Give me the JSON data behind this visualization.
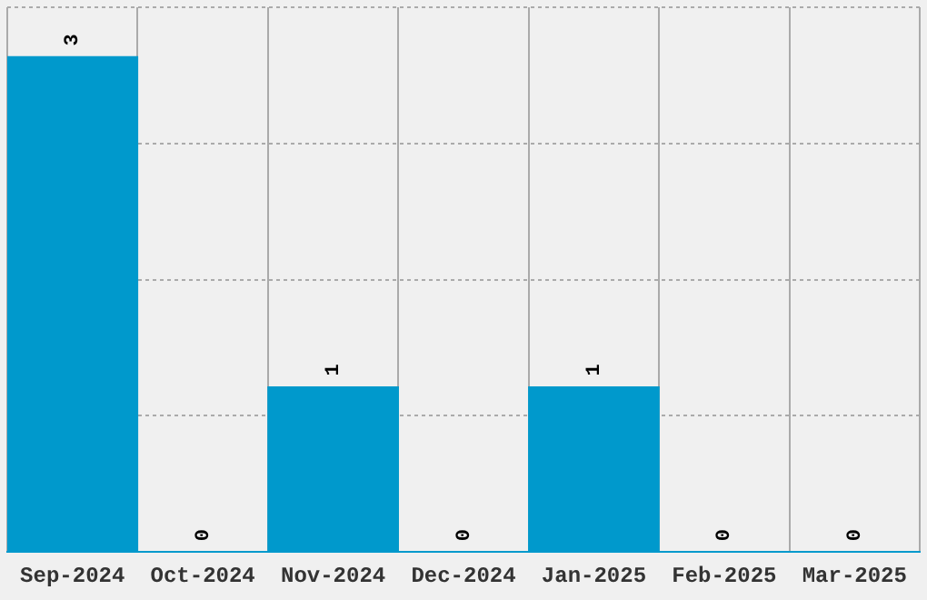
{
  "chart_data": {
    "type": "bar",
    "categories": [
      "Sep-2024",
      "Oct-2024",
      "Nov-2024",
      "Dec-2024",
      "Jan-2025",
      "Feb-2025",
      "Mar-2025"
    ],
    "values": [
      3,
      0,
      1,
      0,
      1,
      0,
      0
    ],
    "color": "#0099cc",
    "ylim": [
      0,
      3.3
    ],
    "yticks": [
      {
        "value": 0,
        "label": null
      },
      {
        "value": 0.825,
        "label": null
      },
      {
        "value": 1.65,
        "label": null
      },
      {
        "value": 2.475,
        "label": null
      },
      {
        "value": 3.3,
        "label": null
      }
    ],
    "tick_labels": "x",
    "grid": true,
    "legend": false,
    "data_labels": true
  }
}
